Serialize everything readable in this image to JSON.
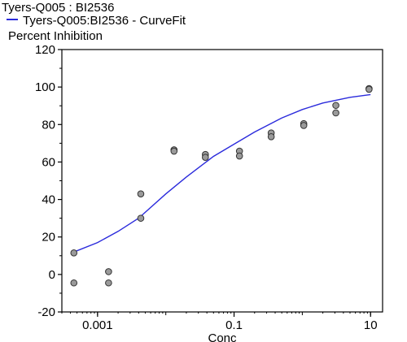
{
  "chart_data": {
    "type": "scatter",
    "title": "Tyers-Q005  : BI2536",
    "legend": {
      "placement": "top-left",
      "entries": [
        "Tyers-Q005:BI2536 - CurveFit"
      ]
    },
    "ylabel": "Percent Inhibition",
    "xlabel": "Conc",
    "x_scale": "log",
    "xlim": [
      0.0003,
      15
    ],
    "ylim": [
      -20,
      120
    ],
    "x_ticks": [
      {
        "value": 0.001,
        "label": "0.001"
      },
      {
        "value": 0.1,
        "label": "0.1"
      },
      {
        "value": 10,
        "label": "10"
      }
    ],
    "y_ticks": [
      {
        "value": -20,
        "label": "-20"
      },
      {
        "value": 0,
        "label": "0"
      },
      {
        "value": 20,
        "label": "20"
      },
      {
        "value": 40,
        "label": "40"
      },
      {
        "value": 60,
        "label": "60"
      },
      {
        "value": 80,
        "label": "80"
      },
      {
        "value": 100,
        "label": "100"
      },
      {
        "value": 120,
        "label": "120"
      }
    ],
    "grid": false,
    "series": [
      {
        "name": "Tyers-Q005:BI2536",
        "kind": "points",
        "color": "#9a9a9a",
        "points": [
          {
            "x": 0.00045,
            "y": 11.5
          },
          {
            "x": 0.00045,
            "y": -4.5
          },
          {
            "x": 0.00145,
            "y": 1.5
          },
          {
            "x": 0.00145,
            "y": -4.5
          },
          {
            "x": 0.0043,
            "y": 43
          },
          {
            "x": 0.0043,
            "y": 30
          },
          {
            "x": 0.0132,
            "y": 66.5
          },
          {
            "x": 0.0132,
            "y": 65.8
          },
          {
            "x": 0.038,
            "y": 64
          },
          {
            "x": 0.038,
            "y": 62.5
          },
          {
            "x": 0.12,
            "y": 65.8
          },
          {
            "x": 0.12,
            "y": 63.2
          },
          {
            "x": 0.35,
            "y": 75.5
          },
          {
            "x": 0.35,
            "y": 73.5
          },
          {
            "x": 1.05,
            "y": 80.5
          },
          {
            "x": 1.05,
            "y": 79.5
          },
          {
            "x": 3.1,
            "y": 90.2
          },
          {
            "x": 3.1,
            "y": 86.2
          },
          {
            "x": 9.5,
            "y": 99.2
          },
          {
            "x": 9.5,
            "y": 98.8
          }
        ]
      },
      {
        "name": "Tyers-Q005:BI2536 - CurveFit",
        "kind": "line",
        "color": "#2b2bdc",
        "points": [
          {
            "x": 0.00045,
            "y": 12
          },
          {
            "x": 0.001,
            "y": 17
          },
          {
            "x": 0.002,
            "y": 23
          },
          {
            "x": 0.004,
            "y": 30
          },
          {
            "x": 0.01,
            "y": 43
          },
          {
            "x": 0.02,
            "y": 52
          },
          {
            "x": 0.05,
            "y": 63
          },
          {
            "x": 0.1,
            "y": 69.5
          },
          {
            "x": 0.2,
            "y": 76
          },
          {
            "x": 0.5,
            "y": 83.5
          },
          {
            "x": 1,
            "y": 88
          },
          {
            "x": 2,
            "y": 91.5
          },
          {
            "x": 5,
            "y": 94.5
          },
          {
            "x": 10,
            "y": 96
          }
        ]
      }
    ]
  }
}
